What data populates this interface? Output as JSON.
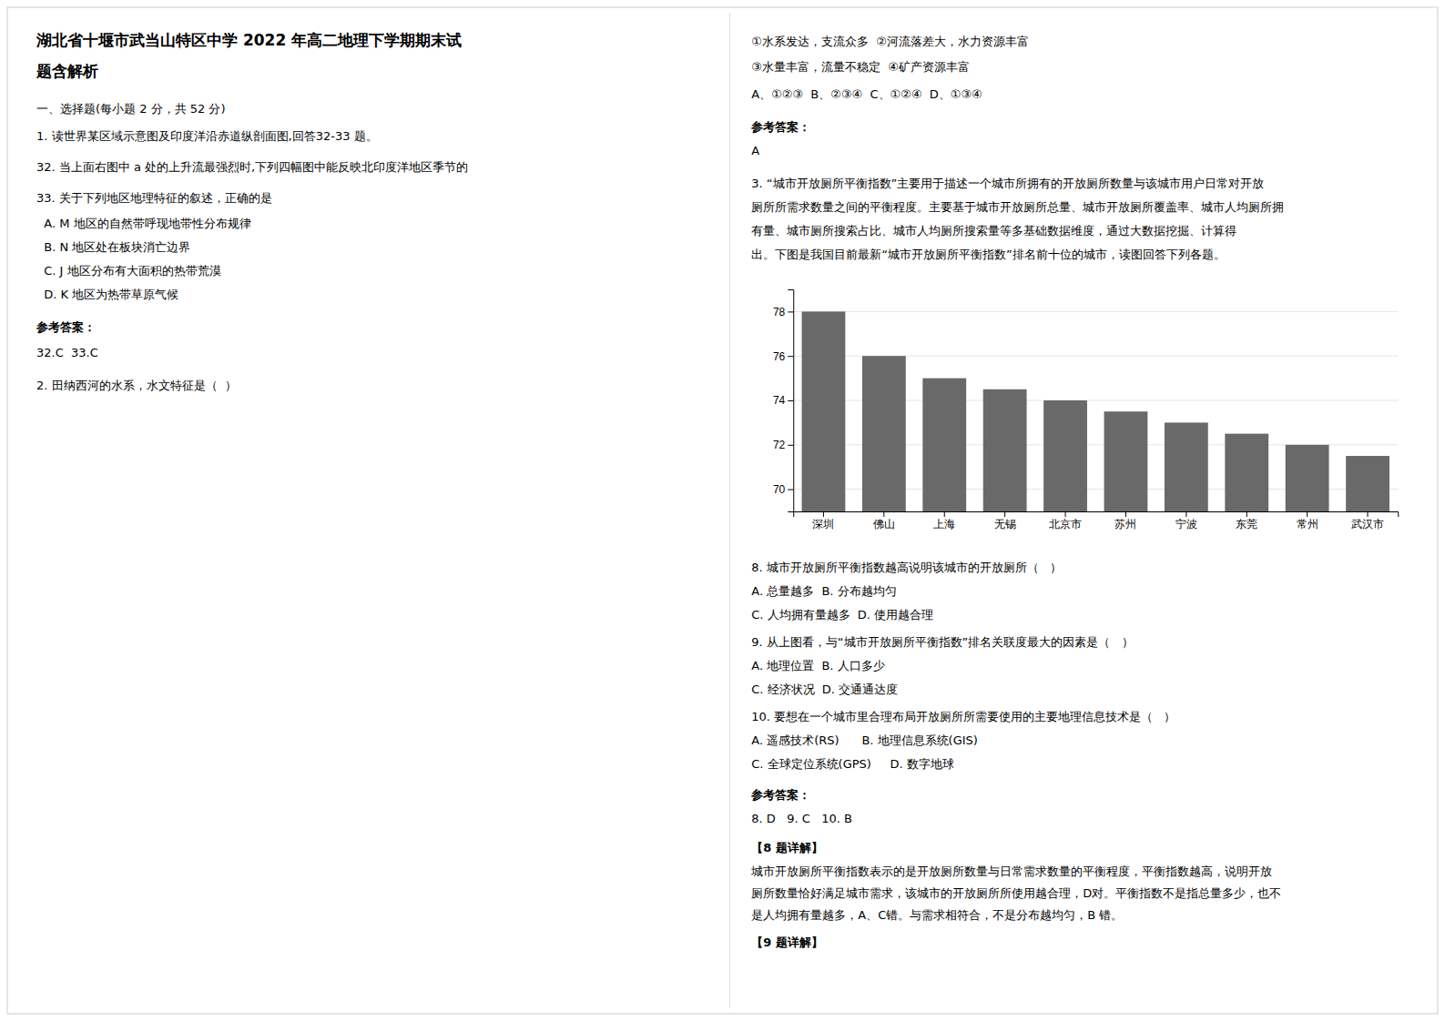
{
  "chart_data": {
    "type": "bar",
    "categories": [
      "深圳",
      "佛山",
      "上海",
      "无锡",
      "北京市",
      "苏州",
      "宁波",
      "东莞",
      "常州",
      "武汉市"
    ],
    "values": [
      78,
      76,
      75,
      74.5,
      74,
      73.5,
      73,
      72.5,
      72,
      71.5
    ],
    "color": "#696969",
    "ylim": [
      69,
      79
    ],
    "yticks": [
      70,
      72,
      74,
      76,
      78
    ],
    "grid": true,
    "annotations": [
      "湖北省十堰市武当山特区中学 2022 年高二地理下学期期末试",
      "题含解析",
      "一、选择题(每小题 2 分，共 52 分)",
      "1. 读世界某区域示意图及印度洋沿赤道纵剖面图,回答32-33 题。",
      "32. 当上面右图中 a 处的上升流最强烈时,下列四幅图中能反映北印度洋地区季节的",
      "33. 关于下列地区地理特征的叙述，正确的是",
      "  A. M 地区的自然带呼现地带性分布规律",
      "  B. N 地区处在板块消亡边界",
      "  C. J 地区分布有大面积的热带荒漠",
      "  D. K 地区为热带草原气候",
      "参考答案：",
      "32.C  33.C",
      "2. 田纳西河的水系，水文特征是（  ）",
      "①水系发达，支流众多  ②河流落差大，水力资源丰富",
      "③水量丰富，流量不稳定  ④矿产资源丰富",
      "A、①②③  B、②③④  C、①②④  D、①③④",
      "参考答案：",
      "A",
      "3. “城市开放厕所平衡指数”主要用于描述一个城市所拥有的开放厕所数量与该城市用户日常对开放",
      "厕所所需求数量之间的平衡程度。主要基于城市开放厕所总量、城市开放厕所覆盖率、城市人均厕所拥",
      "有量、城市厕所搜索占比、城市人均厕所搜索量等多基础数据维度，通过大数据挖掘、计算得",
      "出。下图是我国目前最新“城市开放厕所平衡指数”排名前十位的城市，读图回答下列各题。",
      "8. 城市开放厕所平衡指数越高说明该城市的开放厕所（   ）",
      "A. 总量越多  B. 分布越均匀",
      "C. 人均拥有量越多  D. 使用越合理",
      "9. 从上图看，与“城市开放厕所平衡指数”排名关联度最大的因素是（   ）",
      "A. 地理位置  B. 人口多少",
      "C. 经济状况  D. 交通通达度",
      "10. 要想在一个城市里合理布局开放厕所所需要使用的主要地理信息技术是（   ）",
      "A. 遥感技术(RS)      B. 地理信息系统(GIS)",
      "C. 全球定位系统(GPS)     D. 数字地球",
      "参考答案：",
      "8. D   9. C   10. B",
      "【8 题详解】",
      "城市开放厕所平衡指数表示的是开放厕所数量与日常需求数量的平衡程度，平衡指数越高，说明开放",
      "厕所数量恰好满足城市需求，该城市的开放厕所所使用越合理，D对。平衡指数不是指总量多少，也不",
      "是人均拥有量越多，A、C错。与需求相符合，不是分布越均匀，B 错。",
      "【9 题详解】"
    ]
  }
}
